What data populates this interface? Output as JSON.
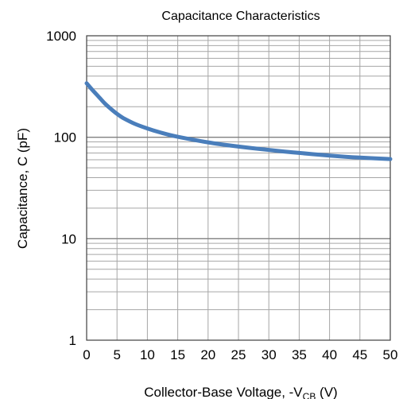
{
  "chart_data": {
    "type": "line",
    "title": "Capacitance Characteristics",
    "xlabel": {
      "main": "Collector-Base Voltage, -V",
      "sub": "CB",
      "unit": " (V)"
    },
    "ylabel": "Capacitance, C (pF)",
    "xlim": [
      0,
      50
    ],
    "ylim": [
      1,
      1000
    ],
    "yscale": "log",
    "grid": true,
    "x_ticks": [
      "0",
      "5",
      "10",
      "15",
      "20",
      "25",
      "30",
      "35",
      "40",
      "45",
      "50"
    ],
    "y_ticks": [
      "1",
      "10",
      "100",
      "1000"
    ],
    "series": [
      {
        "color": "#4a7ebb",
        "x": [
          0,
          1,
          2,
          3,
          4,
          5,
          6,
          8,
          10,
          12,
          15,
          20,
          25,
          30,
          35,
          40,
          45,
          50
        ],
        "y": [
          340,
          290,
          250,
          215,
          190,
          170,
          155,
          135,
          122,
          112,
          101,
          89,
          81,
          75,
          70,
          66,
          63,
          61
        ]
      }
    ]
  }
}
